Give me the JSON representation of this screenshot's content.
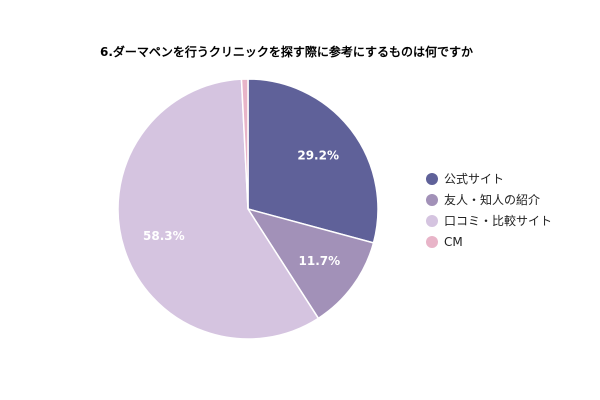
{
  "chart_data": {
    "type": "pie",
    "title": "6.ダーマペンを行うクリニックを探す際に参考にするものは何ですか",
    "legend_position": "right",
    "categories": [
      "公式サイト",
      "友人・知人の紹介",
      "口コミ・比較サイト",
      "CM"
    ],
    "values": [
      29.2,
      11.7,
      58.3,
      0.8
    ],
    "data_labels": [
      "29.2%",
      "11.7%",
      "58.3%",
      ""
    ],
    "colors": [
      "#5f6199",
      "#a291b8",
      "#d5c4e0",
      "#e8b4c8"
    ]
  }
}
